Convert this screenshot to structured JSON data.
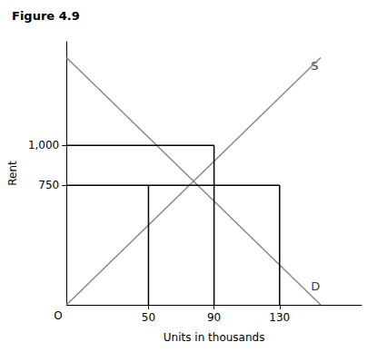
{
  "chart_data": {
    "type": "line",
    "title": "Figure 4.9",
    "x_label": "Units in thousands",
    "y_label": "Rent",
    "origin_label": "O",
    "series": [
      {
        "x": [
          0,
          155
        ],
        "values": [
          0,
          1550
        ],
        "color": "#888888"
      },
      {
        "x": [
          0,
          155
        ],
        "values": [
          1550,
          0
        ],
        "color": "#888888"
      },
      {
        "x": [
          0,
          90
        ],
        "values": [
          1000,
          1000
        ],
        "color": "#000000"
      },
      {
        "x": [
          0,
          130
        ],
        "values": [
          750,
          750
        ],
        "color": "#000000"
      },
      {
        "x": [
          50,
          50
        ],
        "values": [
          0,
          750
        ],
        "color": "#000000"
      },
      {
        "x": [
          90,
          90
        ],
        "values": [
          0,
          1000
        ],
        "color": "#000000"
      },
      {
        "x": [
          130,
          130
        ],
        "values": [
          0,
          750
        ],
        "color": "#000000"
      }
    ],
    "annotations": [
      {
        "text": "S",
        "x": 148,
        "y": 1500
      },
      {
        "text": "D",
        "x": 148,
        "y": 115
      }
    ],
    "xlim": [
      0,
      180
    ],
    "ylim": [
      0,
      1650
    ],
    "xticks": [
      50,
      90,
      130
    ],
    "yticks": [
      750,
      {
        "value": 1000,
        "label": "1,000"
      }
    ],
    "grid": false
  }
}
